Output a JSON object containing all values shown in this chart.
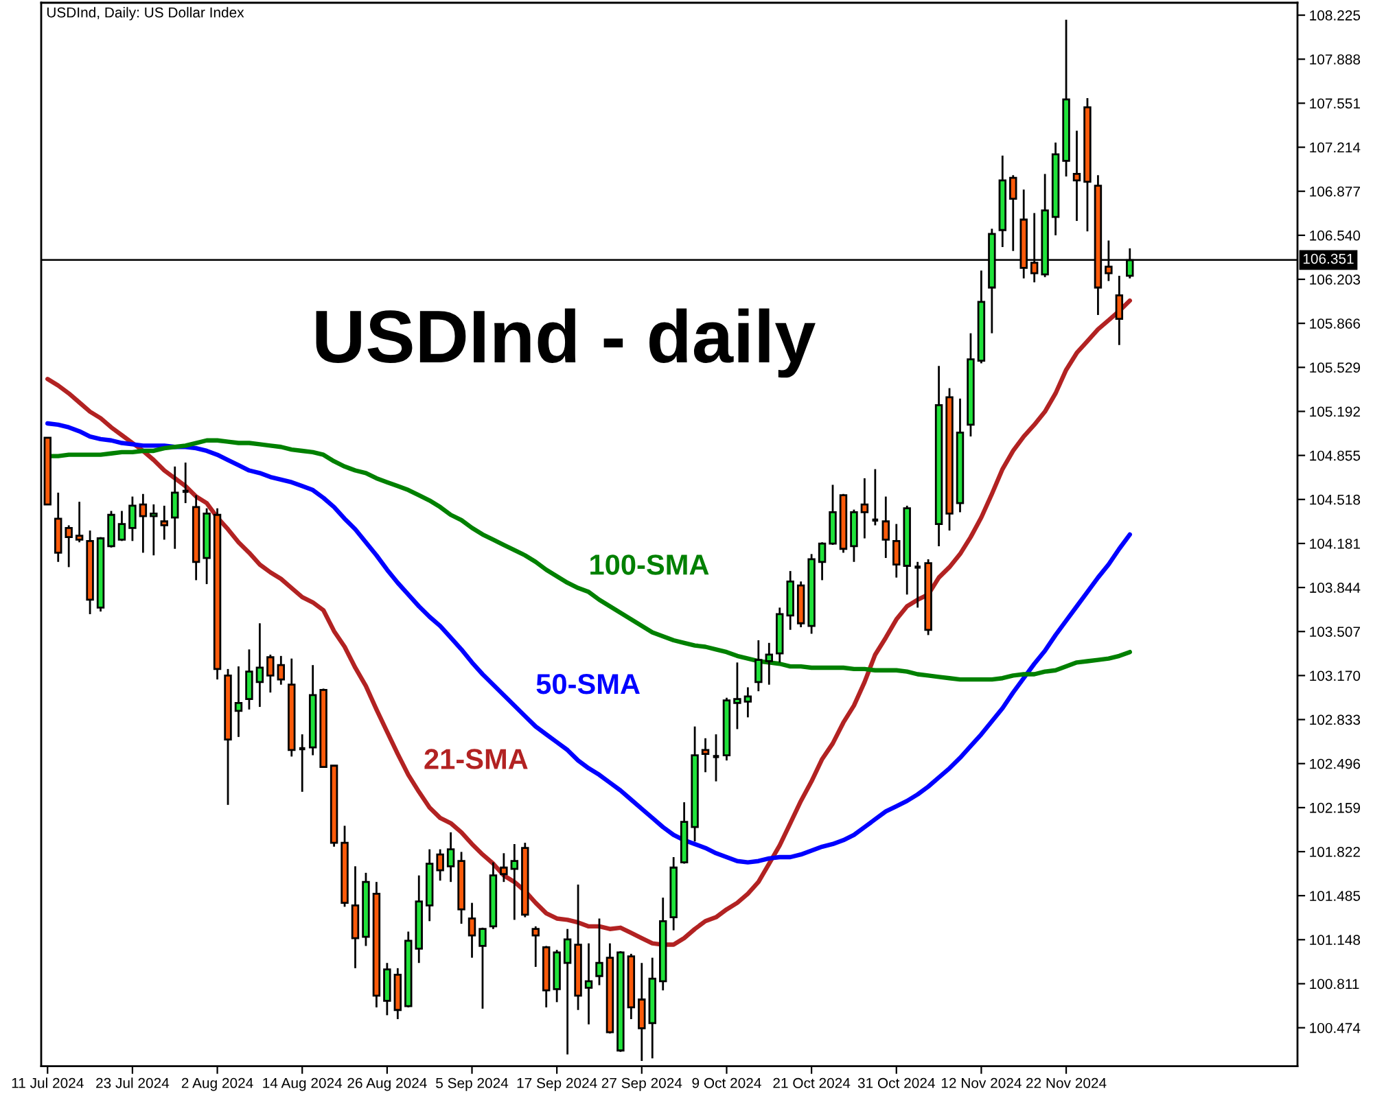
{
  "chart_data": {
    "type": "candlestick",
    "title": "USDInd, Daily: US Dollar Index",
    "categories": [
      "11 Jul 2024",
      null,
      null,
      null,
      null,
      null,
      null,
      null,
      "23 Jul 2024",
      null,
      null,
      null,
      null,
      null,
      null,
      null,
      "2 Aug 2024",
      null,
      null,
      null,
      null,
      null,
      null,
      null,
      "14 Aug 2024",
      null,
      null,
      null,
      null,
      null,
      null,
      null,
      "26 Aug 2024",
      null,
      null,
      null,
      null,
      null,
      null,
      null,
      "5 Sep 2024",
      null,
      null,
      null,
      null,
      null,
      null,
      null,
      "17 Sep 2024",
      null,
      null,
      null,
      null,
      null,
      null,
      null,
      "27 Sep 2024",
      null,
      null,
      null,
      null,
      null,
      null,
      null,
      "9 Oct 2024",
      null,
      null,
      null,
      null,
      null,
      null,
      null,
      "21 Oct 2024",
      null,
      null,
      null,
      null,
      null,
      null,
      null,
      "31 Oct 2024",
      null,
      null,
      null,
      null,
      null,
      null,
      null,
      "12 Nov 2024",
      null,
      null,
      null,
      null,
      null,
      null,
      null,
      "22 Nov 2024",
      null,
      null,
      null,
      null,
      null,
      null
    ],
    "ohlc": [
      [
        104.99,
        104.99,
        104.48,
        104.48
      ],
      [
        104.37,
        104.57,
        104.04,
        104.11
      ],
      [
        104.3,
        104.32,
        104.0,
        104.23
      ],
      [
        104.24,
        104.5,
        104.19,
        104.21
      ],
      [
        104.2,
        104.28,
        103.64,
        103.75
      ],
      [
        103.69,
        104.23,
        103.66,
        104.22
      ],
      [
        104.16,
        104.43,
        104.15,
        104.4
      ],
      [
        104.21,
        104.43,
        104.2,
        104.33
      ],
      [
        104.3,
        104.54,
        104.2,
        104.47
      ],
      [
        104.48,
        104.56,
        104.11,
        104.39
      ],
      [
        104.39,
        104.48,
        104.09,
        104.41
      ],
      [
        104.35,
        104.47,
        104.21,
        104.32
      ],
      [
        104.38,
        104.77,
        104.14,
        104.57
      ],
      [
        104.58,
        104.8,
        104.49,
        104.58
      ],
      [
        104.46,
        104.55,
        103.9,
        104.04
      ],
      [
        104.07,
        104.45,
        103.87,
        104.41
      ],
      [
        104.4,
        104.45,
        103.14,
        103.22
      ],
      [
        103.17,
        103.22,
        102.18,
        102.68
      ],
      [
        102.9,
        103.24,
        102.7,
        102.96
      ],
      [
        102.99,
        103.37,
        102.91,
        103.2
      ],
      [
        103.12,
        103.57,
        102.93,
        103.23
      ],
      [
        103.31,
        103.33,
        103.04,
        103.17
      ],
      [
        103.25,
        103.32,
        103.1,
        103.14
      ],
      [
        103.1,
        103.3,
        102.55,
        102.6
      ],
      [
        102.61,
        102.72,
        102.28,
        102.61
      ],
      [
        102.62,
        103.25,
        102.56,
        103.02
      ],
      [
        103.06,
        103.07,
        102.47,
        102.47
      ],
      [
        102.48,
        102.48,
        101.86,
        101.89
      ],
      [
        101.89,
        102.02,
        101.4,
        101.43
      ],
      [
        101.41,
        101.71,
        100.93,
        101.16
      ],
      [
        101.17,
        101.66,
        101.1,
        101.59
      ],
      [
        101.5,
        101.59,
        100.63,
        100.72
      ],
      [
        100.68,
        100.97,
        100.57,
        100.92
      ],
      [
        100.88,
        100.93,
        100.54,
        100.61
      ],
      [
        100.64,
        101.21,
        100.63,
        101.14
      ],
      [
        101.08,
        101.64,
        100.97,
        101.44
      ],
      [
        101.41,
        101.84,
        101.29,
        101.73
      ],
      [
        101.8,
        101.84,
        101.6,
        101.68
      ],
      [
        101.71,
        101.97,
        101.59,
        101.84
      ],
      [
        101.75,
        101.82,
        101.27,
        101.38
      ],
      [
        101.31,
        101.43,
        101.01,
        101.18
      ],
      [
        101.1,
        101.24,
        100.62,
        101.23
      ],
      [
        101.25,
        101.74,
        101.23,
        101.64
      ],
      [
        101.7,
        101.81,
        101.59,
        101.65
      ],
      [
        101.69,
        101.88,
        101.3,
        101.75
      ],
      [
        101.85,
        101.89,
        101.32,
        101.34
      ],
      [
        101.23,
        101.25,
        100.94,
        101.18
      ],
      [
        101.09,
        101.1,
        100.63,
        100.76
      ],
      [
        100.77,
        101.07,
        100.67,
        101.05
      ],
      [
        100.97,
        101.23,
        100.27,
        101.15
      ],
      [
        101.11,
        101.57,
        100.61,
        100.72
      ],
      [
        100.78,
        101.12,
        100.5,
        100.83
      ],
      [
        100.87,
        101.31,
        100.8,
        100.97
      ],
      [
        101.01,
        101.12,
        100.43,
        100.44
      ],
      [
        100.3,
        101.06,
        100.29,
        101.05
      ],
      [
        101.02,
        101.04,
        100.54,
        100.63
      ],
      [
        100.69,
        100.97,
        100.22,
        100.47
      ],
      [
        100.51,
        101.01,
        100.24,
        100.85
      ],
      [
        100.83,
        101.47,
        100.76,
        101.29
      ],
      [
        101.32,
        101.78,
        101.22,
        101.7
      ],
      [
        101.74,
        102.2,
        101.73,
        102.05
      ],
      [
        102.01,
        102.78,
        101.9,
        102.56
      ],
      [
        102.6,
        102.69,
        102.43,
        102.57
      ],
      [
        102.55,
        102.72,
        102.36,
        102.55
      ],
      [
        102.56,
        103.0,
        102.52,
        102.98
      ],
      [
        102.96,
        103.27,
        102.76,
        102.99
      ],
      [
        102.97,
        103.08,
        102.85,
        103.01
      ],
      [
        103.12,
        103.44,
        103.05,
        103.29
      ],
      [
        103.28,
        103.42,
        103.1,
        103.33
      ],
      [
        103.34,
        103.69,
        103.27,
        103.64
      ],
      [
        103.63,
        103.97,
        103.52,
        103.89
      ],
      [
        103.86,
        103.89,
        103.54,
        103.57
      ],
      [
        103.55,
        104.1,
        103.49,
        104.06
      ],
      [
        104.04,
        104.19,
        103.9,
        104.18
      ],
      [
        104.18,
        104.63,
        104.17,
        104.42
      ],
      [
        104.55,
        104.56,
        104.11,
        104.14
      ],
      [
        104.16,
        104.44,
        104.04,
        104.42
      ],
      [
        104.48,
        104.68,
        104.22,
        104.42
      ],
      [
        104.36,
        104.75,
        104.32,
        104.36
      ],
      [
        104.35,
        104.54,
        104.07,
        104.21
      ],
      [
        104.2,
        104.33,
        103.92,
        104.02
      ],
      [
        104.01,
        104.47,
        103.79,
        104.45
      ],
      [
        104.0,
        104.04,
        103.69,
        104.0
      ],
      [
        104.03,
        104.06,
        103.48,
        103.52
      ],
      [
        104.33,
        105.54,
        104.16,
        105.24
      ],
      [
        105.3,
        105.37,
        104.28,
        104.41
      ],
      [
        104.49,
        105.29,
        104.42,
        105.03
      ],
      [
        105.09,
        105.79,
        105.0,
        105.59
      ],
      [
        105.58,
        106.27,
        105.56,
        106.03
      ],
      [
        106.14,
        106.59,
        105.79,
        106.55
      ],
      [
        106.58,
        107.15,
        106.45,
        106.96
      ],
      [
        106.98,
        107.0,
        106.42,
        106.82
      ],
      [
        106.66,
        106.89,
        106.21,
        106.29
      ],
      [
        106.33,
        106.71,
        106.18,
        106.25
      ],
      [
        106.24,
        107.01,
        106.22,
        106.73
      ],
      [
        106.68,
        107.25,
        106.54,
        107.16
      ],
      [
        107.11,
        108.19,
        106.99,
        107.58
      ],
      [
        107.01,
        107.34,
        106.65,
        106.96
      ],
      [
        107.52,
        107.59,
        106.57,
        106.95
      ],
      [
        106.92,
        107.0,
        105.93,
        106.14
      ],
      [
        106.3,
        106.5,
        106.19,
        106.25
      ],
      [
        106.08,
        106.23,
        105.7,
        105.9
      ],
      [
        106.23,
        106.44,
        106.21,
        106.35
      ]
    ],
    "colors": [
      "#fa5a0a",
      "#fa5a0a",
      "#fa5a0a",
      "#fa5a0a",
      "#fa5a0a",
      "#1fe23a",
      "#1fe23a",
      "#1fe23a",
      "#1fe23a",
      "#fa5a0a",
      "#1fe23a",
      "#fa5a0a",
      "#1fe23a",
      "#000000",
      "#fa5a0a",
      "#1fe23a",
      "#fa5a0a",
      "#fa5a0a",
      "#1fe23a",
      "#1fe23a",
      "#1fe23a",
      "#fa5a0a",
      "#fa5a0a",
      "#fa5a0a",
      "#000000",
      "#1fe23a",
      "#fa5a0a",
      "#fa5a0a",
      "#fa5a0a",
      "#fa5a0a",
      "#1fe23a",
      "#fa5a0a",
      "#1fe23a",
      "#fa5a0a",
      "#1fe23a",
      "#1fe23a",
      "#1fe23a",
      "#fa5a0a",
      "#1fe23a",
      "#fa5a0a",
      "#fa5a0a",
      "#1fe23a",
      "#1fe23a",
      "#fa5a0a",
      "#1fe23a",
      "#fa5a0a",
      "#fa5a0a",
      "#fa5a0a",
      "#1fe23a",
      "#1fe23a",
      "#fa5a0a",
      "#1fe23a",
      "#1fe23a",
      "#fa5a0a",
      "#1fe23a",
      "#fa5a0a",
      "#fa5a0a",
      "#1fe23a",
      "#1fe23a",
      "#1fe23a",
      "#1fe23a",
      "#1fe23a",
      "#fa5a0a",
      "#000000",
      "#1fe23a",
      "#1fe23a",
      "#1fe23a",
      "#1fe23a",
      "#1fe23a",
      "#1fe23a",
      "#1fe23a",
      "#fa5a0a",
      "#1fe23a",
      "#1fe23a",
      "#1fe23a",
      "#fa5a0a",
      "#1fe23a",
      "#fa5a0a",
      "#000000",
      "#fa5a0a",
      "#fa5a0a",
      "#1fe23a",
      "#000000",
      "#fa5a0a",
      "#1fe23a",
      "#fa5a0a",
      "#1fe23a",
      "#1fe23a",
      "#1fe23a",
      "#1fe23a",
      "#1fe23a",
      "#fa5a0a",
      "#fa5a0a",
      "#fa5a0a",
      "#1fe23a",
      "#1fe23a",
      "#1fe23a",
      "#fa5a0a",
      "#fa5a0a",
      "#fa5a0a",
      "#fa5a0a",
      "#fa5a0a",
      "#1fe23a"
    ],
    "series": [
      {
        "name": "21-SMA",
        "type": "line",
        "color": "#b22222",
        "values": [
          105.44,
          105.39,
          105.33,
          105.26,
          105.19,
          105.14,
          105.07,
          105.01,
          104.95,
          104.89,
          104.82,
          104.74,
          104.68,
          104.62,
          104.54,
          104.49,
          104.38,
          104.29,
          104.19,
          104.11,
          104.02,
          103.96,
          103.91,
          103.84,
          103.77,
          103.73,
          103.67,
          103.51,
          103.39,
          103.23,
          103.09,
          102.91,
          102.74,
          102.57,
          102.41,
          102.28,
          102.16,
          102.08,
          102.04,
          101.97,
          101.88,
          101.8,
          101.73,
          101.64,
          101.59,
          101.52,
          101.43,
          101.35,
          101.31,
          101.3,
          101.28,
          101.25,
          101.25,
          101.23,
          101.24,
          101.2,
          101.16,
          101.12,
          101.11,
          101.11,
          101.16,
          101.23,
          101.29,
          101.32,
          101.38,
          101.43,
          101.5,
          101.59,
          101.73,
          101.87,
          102.04,
          102.21,
          102.36,
          102.53,
          102.65,
          102.81,
          102.94,
          103.12,
          103.33,
          103.46,
          103.6,
          103.7,
          103.75,
          103.79,
          103.92,
          104.0,
          104.1,
          104.23,
          104.38,
          104.56,
          104.75,
          104.89,
          105.0,
          105.09,
          105.19,
          105.33,
          105.51,
          105.64,
          105.73,
          105.82,
          105.89,
          105.96,
          106.04
        ]
      },
      {
        "name": "50-SMA",
        "type": "line",
        "color": "#0000ff",
        "values": [
          105.1,
          105.09,
          105.07,
          105.04,
          105.0,
          104.98,
          104.97,
          104.95,
          104.94,
          104.93,
          104.93,
          104.93,
          104.92,
          104.92,
          104.91,
          104.89,
          104.86,
          104.82,
          104.78,
          104.74,
          104.72,
          104.69,
          104.67,
          104.65,
          104.62,
          104.59,
          104.53,
          104.46,
          104.37,
          104.29,
          104.19,
          104.09,
          103.98,
          103.88,
          103.79,
          103.7,
          103.62,
          103.55,
          103.46,
          103.37,
          103.27,
          103.18,
          103.1,
          103.02,
          102.94,
          102.86,
          102.78,
          102.72,
          102.66,
          102.6,
          102.52,
          102.46,
          102.41,
          102.35,
          102.29,
          102.22,
          102.15,
          102.08,
          102.01,
          101.95,
          101.91,
          101.88,
          101.85,
          101.81,
          101.78,
          101.75,
          101.74,
          101.75,
          101.77,
          101.78,
          101.78,
          101.8,
          101.83,
          101.86,
          101.88,
          101.91,
          101.95,
          102.01,
          102.07,
          102.13,
          102.17,
          102.21,
          102.26,
          102.32,
          102.39,
          102.46,
          102.54,
          102.63,
          102.72,
          102.82,
          102.92,
          103.04,
          103.15,
          103.26,
          103.36,
          103.48,
          103.59,
          103.7,
          103.81,
          103.92,
          104.02,
          104.14,
          104.25
        ]
      },
      {
        "name": "100-SMA",
        "type": "line",
        "color": "#008000",
        "values": [
          104.85,
          104.85,
          104.86,
          104.86,
          104.86,
          104.86,
          104.87,
          104.88,
          104.88,
          104.89,
          104.89,
          104.91,
          104.92,
          104.93,
          104.95,
          104.97,
          104.97,
          104.96,
          104.95,
          104.95,
          104.94,
          104.93,
          104.92,
          104.9,
          104.89,
          104.88,
          104.86,
          104.81,
          104.77,
          104.74,
          104.72,
          104.68,
          104.65,
          104.62,
          104.59,
          104.55,
          104.51,
          104.46,
          104.4,
          104.36,
          104.3,
          104.25,
          104.21,
          104.17,
          104.13,
          104.09,
          104.04,
          103.98,
          103.93,
          103.88,
          103.84,
          103.81,
          103.75,
          103.7,
          103.65,
          103.6,
          103.55,
          103.5,
          103.47,
          103.44,
          103.42,
          103.4,
          103.39,
          103.37,
          103.35,
          103.32,
          103.3,
          103.28,
          103.27,
          103.26,
          103.24,
          103.24,
          103.23,
          103.23,
          103.23,
          103.23,
          103.22,
          103.22,
          103.21,
          103.21,
          103.21,
          103.2,
          103.18,
          103.17,
          103.16,
          103.15,
          103.14,
          103.14,
          103.14,
          103.14,
          103.15,
          103.17,
          103.18,
          103.18,
          103.2,
          103.21,
          103.24,
          103.27,
          103.28,
          103.29,
          103.3,
          103.32,
          103.35
        ]
      }
    ],
    "ylim": [
      100.18,
      108.32
    ],
    "yticks": [
      100.474,
      100.811,
      101.148,
      101.485,
      101.822,
      102.159,
      102.496,
      102.833,
      {
        "value": 103.17,
        "label": "103.170"
      },
      103.507,
      103.844,
      104.181,
      104.518,
      104.855,
      105.192,
      105.529,
      105.866,
      106.203,
      {
        "value": 106.54,
        "label": "106.540"
      },
      106.877,
      107.214,
      107.551,
      107.888,
      108.225
    ],
    "ref_lines": [
      {
        "axis": "y",
        "value": 106.351,
        "label": "106.351",
        "color": "#000000"
      }
    ],
    "annotations": [
      "USDInd - daily"
    ],
    "grid": false,
    "line_style": "solid"
  }
}
